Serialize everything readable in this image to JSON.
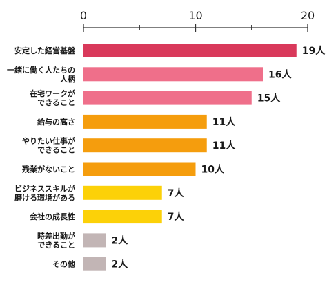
{
  "chart_data": {
    "type": "bar",
    "orientation": "horizontal",
    "title": "",
    "xlabel": "",
    "ylabel": "",
    "xlim": [
      0,
      20
    ],
    "x_ticks": [
      0,
      10,
      20
    ],
    "x_tick_labels": [
      "0",
      "10",
      "20"
    ],
    "x_axis_position": "top",
    "grid": false,
    "categories": [
      [
        "安定した経営基盤"
      ],
      [
        "一緒に働く人たちの",
        "人柄"
      ],
      [
        "在宅ワークが",
        "できること"
      ],
      [
        "給与の高さ"
      ],
      [
        "やりたい仕事が",
        "できること"
      ],
      [
        "残業がないこと"
      ],
      [
        "ビジネススキルが",
        "磨ける環境がある"
      ],
      [
        "会社の成長性"
      ],
      [
        "時差出勤が",
        "できること"
      ],
      [
        "その他"
      ]
    ],
    "values": [
      19,
      16,
      15,
      11,
      11,
      10,
      7,
      7,
      2,
      2
    ],
    "value_labels": [
      "19人",
      "16人",
      "15人",
      "11人",
      "11人",
      "10人",
      "7人",
      "7人",
      "2人",
      "2人"
    ],
    "colors": [
      "#d9395b",
      "#ef6f8a",
      "#ef6f8a",
      "#f59d0d",
      "#f59d0d",
      "#f59d0d",
      "#fcd108",
      "#fcd108",
      "#c2b5b5",
      "#c2b5b5"
    ]
  }
}
